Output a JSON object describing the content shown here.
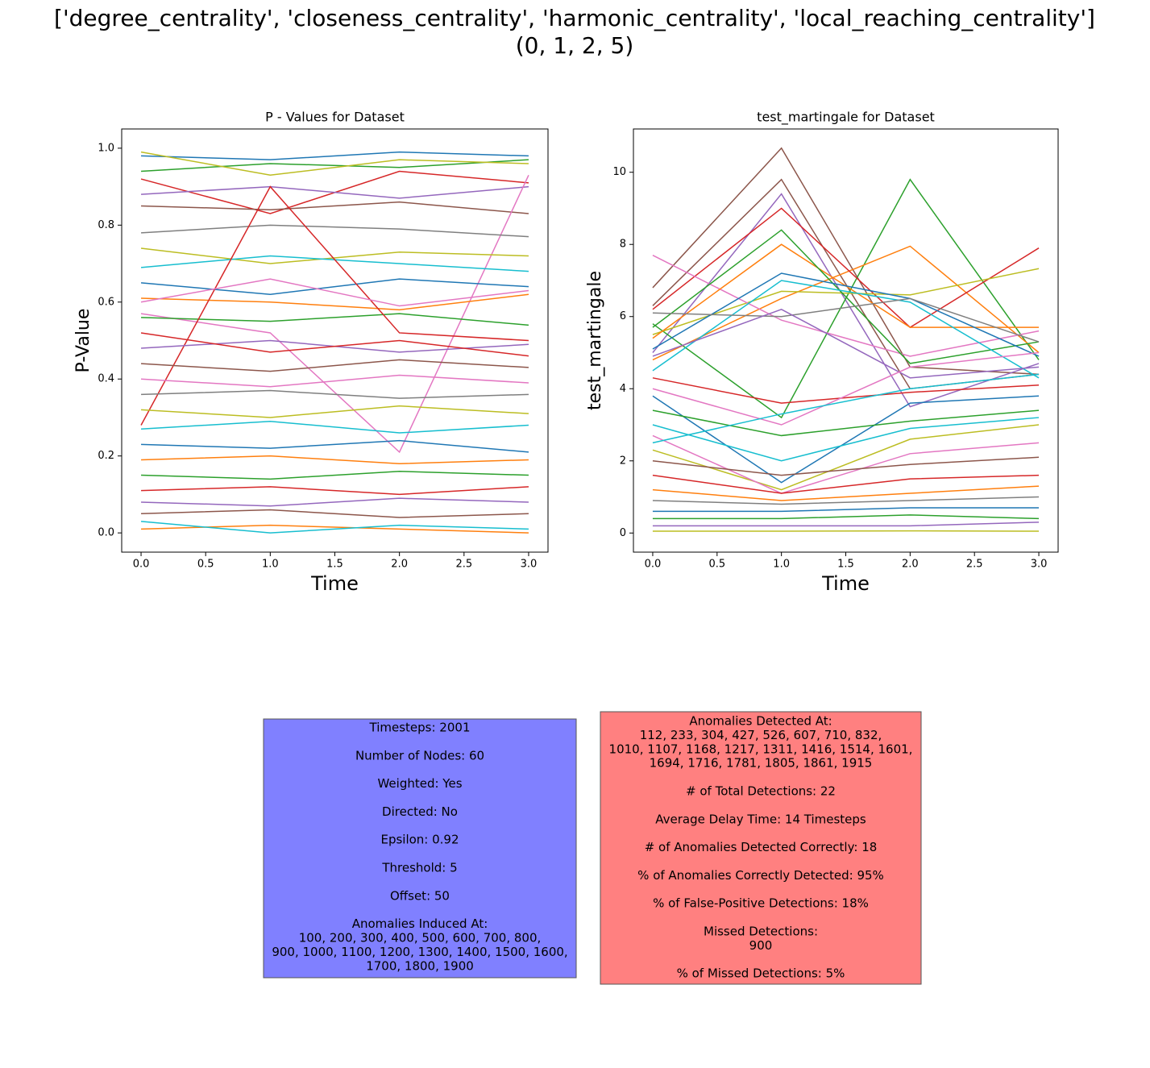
{
  "suptitle": [
    "['degree_centrality', 'closeness_centrality', 'harmonic_centrality', 'local_reaching_centrality']",
    "(0, 1, 2, 5)"
  ],
  "chart_data": [
    {
      "type": "line",
      "title": "P - Values for Dataset",
      "xlabel": "Time",
      "ylabel": "P-Value",
      "x": [
        0,
        1,
        2,
        3
      ],
      "xlim": [
        -0.15,
        3.15
      ],
      "ylim": [
        -0.05,
        1.05
      ],
      "xticks": [
        {
          "value": 0,
          "label": "0.0"
        },
        {
          "value": 0.5,
          "label": "0.5"
        },
        {
          "value": 1,
          "label": "1.0"
        },
        {
          "value": 1.5,
          "label": "1.5"
        },
        {
          "value": 2,
          "label": "2.0"
        },
        {
          "value": 2.5,
          "label": "2.5"
        },
        {
          "value": 3,
          "label": "3.0"
        }
      ],
      "yticks": [
        {
          "value": 0,
          "label": "0.0"
        },
        {
          "value": 0.2,
          "label": "0.2"
        },
        {
          "value": 0.4,
          "label": "0.4"
        },
        {
          "value": 0.6,
          "label": "0.6"
        },
        {
          "value": 0.8,
          "label": "0.8"
        },
        {
          "value": 1,
          "label": "1.0"
        }
      ],
      "series": [
        {
          "color": "#1f77b4",
          "values": [
            0.98,
            0.97,
            0.99,
            0.98
          ]
        },
        {
          "color": "#ff7f0e",
          "values": [
            0.01,
            0.02,
            0.01,
            0.0
          ]
        },
        {
          "color": "#2ca02c",
          "values": [
            0.94,
            0.96,
            0.95,
            0.97
          ]
        },
        {
          "color": "#d62728",
          "values": [
            0.92,
            0.83,
            0.94,
            0.91
          ]
        },
        {
          "color": "#9467bd",
          "values": [
            0.88,
            0.9,
            0.87,
            0.9
          ]
        },
        {
          "color": "#8c564b",
          "values": [
            0.85,
            0.84,
            0.86,
            0.83
          ]
        },
        {
          "color": "#e377c2",
          "values": [
            0.57,
            0.52,
            0.21,
            0.93
          ]
        },
        {
          "color": "#7f7f7f",
          "values": [
            0.78,
            0.8,
            0.79,
            0.77
          ]
        },
        {
          "color": "#bcbd22",
          "values": [
            0.74,
            0.7,
            0.73,
            0.72
          ]
        },
        {
          "color": "#17becf",
          "values": [
            0.69,
            0.72,
            0.7,
            0.68
          ]
        },
        {
          "color": "#1f77b4",
          "values": [
            0.65,
            0.62,
            0.66,
            0.64
          ]
        },
        {
          "color": "#ff7f0e",
          "values": [
            0.61,
            0.6,
            0.58,
            0.62
          ]
        },
        {
          "color": "#2ca02c",
          "values": [
            0.56,
            0.55,
            0.57,
            0.54
          ]
        },
        {
          "color": "#d62728",
          "values": [
            0.28,
            0.9,
            0.52,
            0.5
          ]
        },
        {
          "color": "#9467bd",
          "values": [
            0.48,
            0.5,
            0.47,
            0.49
          ]
        },
        {
          "color": "#8c564b",
          "values": [
            0.44,
            0.42,
            0.45,
            0.43
          ]
        },
        {
          "color": "#e377c2",
          "values": [
            0.4,
            0.38,
            0.41,
            0.39
          ]
        },
        {
          "color": "#7f7f7f",
          "values": [
            0.36,
            0.37,
            0.35,
            0.36
          ]
        },
        {
          "color": "#bcbd22",
          "values": [
            0.32,
            0.3,
            0.33,
            0.31
          ]
        },
        {
          "color": "#17becf",
          "values": [
            0.27,
            0.29,
            0.26,
            0.28
          ]
        },
        {
          "color": "#1f77b4",
          "values": [
            0.23,
            0.22,
            0.24,
            0.21
          ]
        },
        {
          "color": "#ff7f0e",
          "values": [
            0.19,
            0.2,
            0.18,
            0.19
          ]
        },
        {
          "color": "#2ca02c",
          "values": [
            0.15,
            0.14,
            0.16,
            0.15
          ]
        },
        {
          "color": "#d62728",
          "values": [
            0.11,
            0.12,
            0.1,
            0.12
          ]
        },
        {
          "color": "#9467bd",
          "values": [
            0.08,
            0.07,
            0.09,
            0.08
          ]
        },
        {
          "color": "#8c564b",
          "values": [
            0.05,
            0.06,
            0.04,
            0.05
          ]
        },
        {
          "color": "#e377c2",
          "values": [
            0.6,
            0.66,
            0.59,
            0.63
          ]
        },
        {
          "color": "#d62728",
          "values": [
            0.52,
            0.47,
            0.5,
            0.46
          ]
        },
        {
          "color": "#17becf",
          "values": [
            0.03,
            0.0,
            0.02,
            0.01
          ]
        },
        {
          "color": "#bcbd22",
          "values": [
            0.99,
            0.93,
            0.97,
            0.96
          ]
        }
      ]
    },
    {
      "type": "line",
      "title": "test_martingale for Dataset",
      "xlabel": "Time",
      "ylabel": "test_martingale",
      "x": [
        0,
        1,
        2,
        3
      ],
      "xlim": [
        -0.15,
        3.15
      ],
      "ylim": [
        -0.53,
        11.2
      ],
      "xticks": [
        {
          "value": 0,
          "label": "0.0"
        },
        {
          "value": 0.5,
          "label": "0.5"
        },
        {
          "value": 1,
          "label": "1.0"
        },
        {
          "value": 1.5,
          "label": "1.5"
        },
        {
          "value": 2,
          "label": "2.0"
        },
        {
          "value": 2.5,
          "label": "2.5"
        },
        {
          "value": 3,
          "label": "3.0"
        }
      ],
      "yticks": [
        0,
        2,
        4,
        6,
        8,
        10
      ],
      "series": [
        {
          "color": "#8c564b",
          "values": [
            6.8,
            10.67,
            4.6,
            4.4
          ]
        },
        {
          "color": "#8c564b",
          "values": [
            6.3,
            9.8,
            4.0,
            4.4
          ]
        },
        {
          "color": "#9467bd",
          "values": [
            5.0,
            9.4,
            3.5,
            4.7
          ]
        },
        {
          "color": "#2ca02c",
          "values": [
            5.8,
            3.2,
            9.8,
            4.8
          ]
        },
        {
          "color": "#ff7f0e",
          "values": [
            4.8,
            6.5,
            7.95,
            5.0
          ]
        },
        {
          "color": "#d62728",
          "values": [
            6.2,
            9.0,
            5.7,
            7.9
          ]
        },
        {
          "color": "#bcbd22",
          "values": [
            5.5,
            6.7,
            6.6,
            7.33
          ]
        },
        {
          "color": "#e377c2",
          "values": [
            7.7,
            5.9,
            4.9,
            5.6
          ]
        },
        {
          "color": "#ff7f0e",
          "values": [
            5.4,
            8.0,
            5.7,
            5.7
          ]
        },
        {
          "color": "#2ca02c",
          "values": [
            5.7,
            8.4,
            4.7,
            5.3
          ]
        },
        {
          "color": "#17becf",
          "values": [
            4.5,
            7.0,
            6.4,
            4.3
          ]
        },
        {
          "color": "#1f77b4",
          "values": [
            5.1,
            7.2,
            6.5,
            4.9
          ]
        },
        {
          "color": "#7f7f7f",
          "values": [
            6.1,
            6.0,
            6.5,
            5.3
          ]
        },
        {
          "color": "#9467bd",
          "values": [
            4.9,
            6.2,
            4.3,
            4.6
          ]
        },
        {
          "color": "#d62728",
          "values": [
            4.3,
            3.6,
            3.9,
            4.1
          ]
        },
        {
          "color": "#1f77b4",
          "values": [
            3.8,
            1.4,
            3.6,
            3.8
          ]
        },
        {
          "color": "#bcbd22",
          "values": [
            2.3,
            1.2,
            2.6,
            3.0
          ]
        },
        {
          "color": "#e377c2",
          "values": [
            2.7,
            1.1,
            2.2,
            2.5
          ]
        },
        {
          "color": "#2ca02c",
          "values": [
            3.4,
            2.7,
            3.1,
            3.4
          ]
        },
        {
          "color": "#17becf",
          "values": [
            3.0,
            2.0,
            2.9,
            3.2
          ]
        },
        {
          "color": "#8c564b",
          "values": [
            2.0,
            1.6,
            1.9,
            2.1
          ]
        },
        {
          "color": "#d62728",
          "values": [
            1.6,
            1.1,
            1.5,
            1.6
          ]
        },
        {
          "color": "#ff7f0e",
          "values": [
            1.2,
            0.9,
            1.1,
            1.3
          ]
        },
        {
          "color": "#7f7f7f",
          "values": [
            0.9,
            0.8,
            0.9,
            1.0
          ]
        },
        {
          "color": "#1f77b4",
          "values": [
            0.6,
            0.6,
            0.7,
            0.7
          ]
        },
        {
          "color": "#2ca02c",
          "values": [
            0.4,
            0.4,
            0.5,
            0.4
          ]
        },
        {
          "color": "#9467bd",
          "values": [
            0.2,
            0.2,
            0.2,
            0.3
          ]
        },
        {
          "color": "#bcbd22",
          "values": [
            0.05,
            0.05,
            0.06,
            0.05
          ]
        },
        {
          "color": "#e377c2",
          "values": [
            4.0,
            3.0,
            4.6,
            5.0
          ]
        },
        {
          "color": "#17becf",
          "values": [
            2.5,
            3.3,
            4.0,
            4.4
          ]
        }
      ]
    }
  ],
  "info_boxes": {
    "left": [
      [
        "Timesteps: 2001"
      ],
      [
        "Number of Nodes: 60"
      ],
      [
        "Weighted: Yes"
      ],
      [
        "Directed: No"
      ],
      [
        "Epsilon: 0.92"
      ],
      [
        "Threshold: 5"
      ],
      [
        "Offset: 50"
      ],
      [
        "Anomalies Induced At:",
        "100, 200, 300, 400, 500, 600, 700, 800,",
        "900, 1000, 1100, 1200, 1300, 1400, 1500, 1600,",
        "1700, 1800, 1900"
      ]
    ],
    "right": [
      [
        "Anomalies Detected At:",
        "112, 233, 304, 427, 526, 607, 710, 832,",
        "1010, 1107, 1168, 1217, 1311, 1416, 1514, 1601,",
        "1694, 1716, 1781, 1805, 1861, 1915"
      ],
      [
        "# of Total Detections: 22"
      ],
      [
        "Average Delay Time: 14 Timesteps"
      ],
      [
        "# of Anomalies Detected Correctly: 18"
      ],
      [
        "% of Anomalies Correctly Detected: 95%"
      ],
      [
        "% of False-Positive Detections: 18%"
      ],
      [
        "Missed Detections:",
        "900"
      ],
      [
        "% of Missed Detections: 5%"
      ]
    ]
  }
}
